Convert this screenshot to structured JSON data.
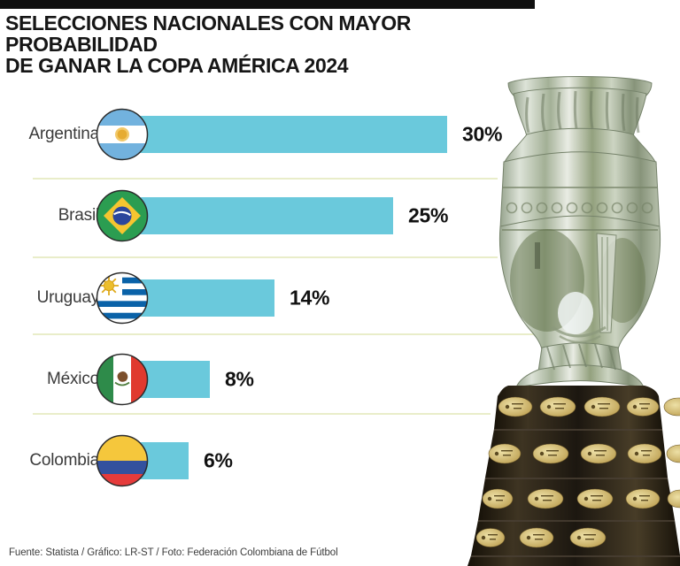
{
  "header": {
    "title_line1": "SELECCIONES NACIONALES CON MAYOR PROBABILIDAD",
    "title_line2": "DE GANAR LA COPA AMÉRICA 2024"
  },
  "chart_data": {
    "type": "bar",
    "orientation": "horizontal",
    "title": "Selecciones nacionales con mayor probabilidad de ganar la Copa América 2024",
    "categories": [
      "Argentina",
      "Brasil",
      "Uruguay",
      "México",
      "Colombia"
    ],
    "values": [
      30,
      25,
      14,
      8,
      6
    ],
    "value_labels": [
      "30%",
      "25%",
      "14%",
      "8%",
      "6%"
    ],
    "unit": "%",
    "xlim": [
      0,
      30
    ],
    "grid": false,
    "legend": "none",
    "bar_color": "#6AC9DC",
    "flag_icons": [
      "argentina-flag-icon",
      "brasil-flag-icon",
      "uruguay-flag-icon",
      "mexico-flag-icon",
      "colombia-flag-icon"
    ]
  },
  "rows": [
    {
      "label": "Argentina",
      "value": 30,
      "value_label": "30%"
    },
    {
      "label": "Brasil",
      "value": 25,
      "value_label": "25%"
    },
    {
      "label": "Uruguay",
      "value": 14,
      "value_label": "14%"
    },
    {
      "label": "México",
      "value": 8,
      "value_label": "8%"
    },
    {
      "label": "Colombia",
      "value": 6,
      "value_label": "6%"
    }
  ],
  "footer": {
    "source": "Fuente: Statista / Gráfico: LR-ST / Foto: Federación Colombiana de Fútbol"
  },
  "trophy": {
    "alt": "copa-america-trophy"
  },
  "colors": {
    "bar": "#6AC9DC",
    "divider": "#E9EDC9",
    "top_bar": "#101010"
  }
}
